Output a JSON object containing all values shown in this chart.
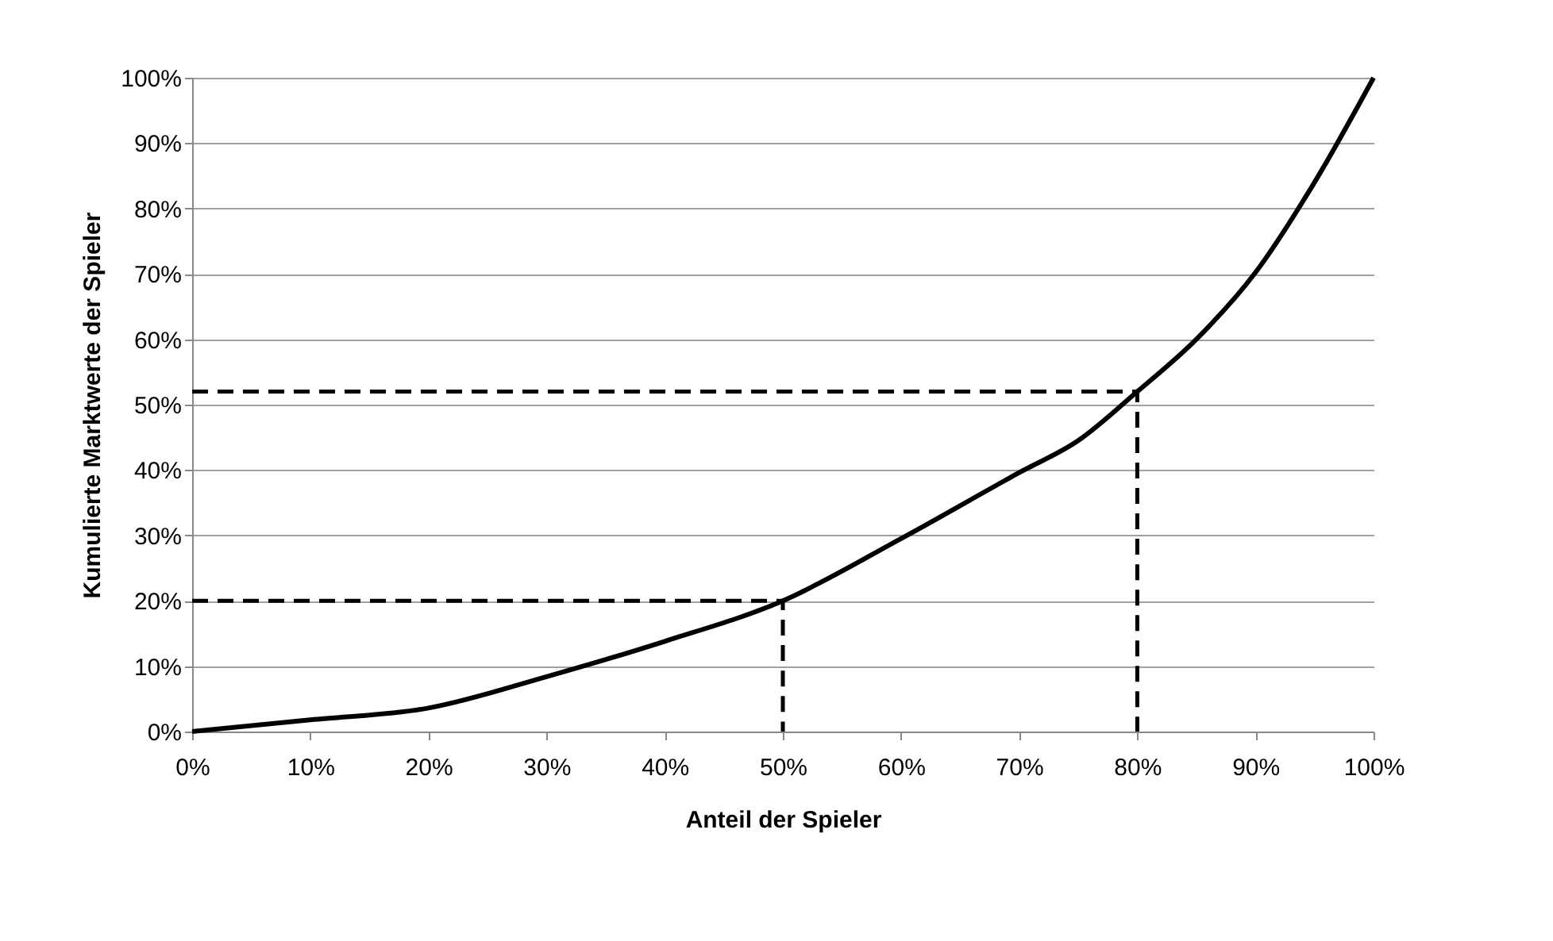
{
  "chart_data": {
    "type": "line",
    "xlabel": "Anteil der Spieler",
    "ylabel": "Kumulierte Marktwerte der Spieler",
    "series": [
      {
        "color": "#000000",
        "x": [
          0,
          10,
          20,
          30,
          40,
          50,
          60,
          70,
          75,
          80,
          85,
          90,
          95,
          100
        ],
        "values": [
          0,
          1.8,
          3.6,
          8.4,
          13.8,
          20,
          29.5,
          39.6,
          44.5,
          52,
          60,
          70.2,
          84,
          100
        ]
      },
      {
        "color": "#000000",
        "line_style": "dashed",
        "x": [
          0,
          50,
          50
        ],
        "values": [
          20,
          20,
          0
        ]
      },
      {
        "color": "#000000",
        "line_style": "dashed",
        "x": [
          0,
          80,
          80
        ],
        "values": [
          52,
          52,
          0
        ]
      }
    ],
    "xlim": [
      0,
      100
    ],
    "ylim": [
      0,
      100
    ],
    "xticks": [
      {
        "value": 0,
        "label": "0%"
      },
      {
        "value": 10,
        "label": "10%"
      },
      {
        "value": 20,
        "label": "20%"
      },
      {
        "value": 30,
        "label": "30%"
      },
      {
        "value": 40,
        "label": "40%"
      },
      {
        "value": 50,
        "label": "50%"
      },
      {
        "value": 60,
        "label": "60%"
      },
      {
        "value": 70,
        "label": "70%"
      },
      {
        "value": 80,
        "label": "80%"
      },
      {
        "value": 90,
        "label": "90%"
      },
      {
        "value": 100,
        "label": "100%"
      }
    ],
    "yticks": [
      {
        "value": 0,
        "label": "0%"
      },
      {
        "value": 10,
        "label": "10%"
      },
      {
        "value": 20,
        "label": "20%"
      },
      {
        "value": 30,
        "label": "30%"
      },
      {
        "value": 40,
        "label": "40%"
      },
      {
        "value": 50,
        "label": "50%"
      },
      {
        "value": 60,
        "label": "60%"
      },
      {
        "value": 70,
        "label": "70%"
      },
      {
        "value": 80,
        "label": "80%"
      },
      {
        "value": 90,
        "label": "90%"
      },
      {
        "value": 100,
        "label": "100%"
      }
    ],
    "grid": "y",
    "marker": "none"
  }
}
